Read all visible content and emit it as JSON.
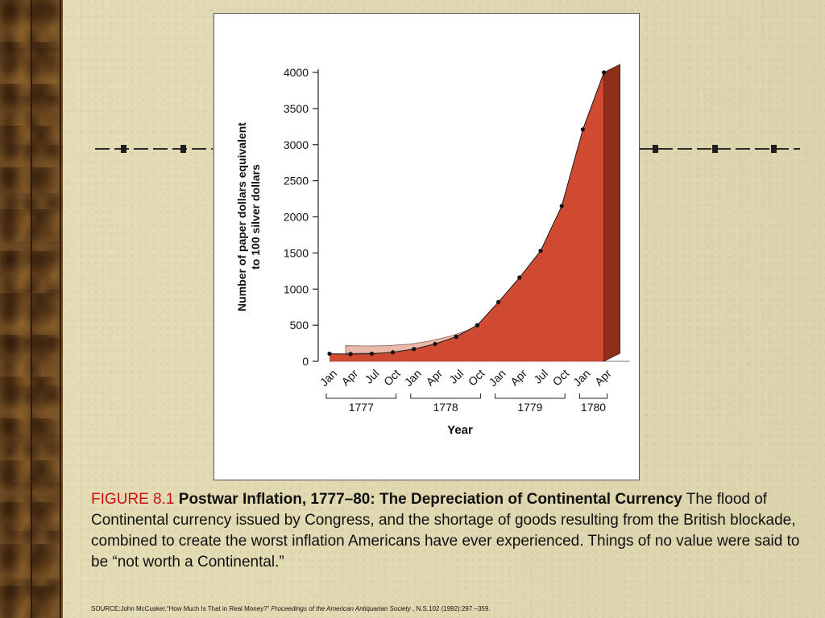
{
  "figure": {
    "label": "FIGURE 8.1",
    "title": "Postwar Inflation, 1777–80: The Depreciation of Continental Currency",
    "description": "The flood of Continental currency issued by Congress, and the shortage of goods resulting from the British blockade, combined to create the worst inflation Americans have ever experienced. Things of no value were said to be “not worth a Continental.”"
  },
  "source": {
    "prefix": "SOURCE:John McCusker,“How Much Is That in Real Money?”",
    "journal": "Proceedings of the American Antiquarian Society",
    "suffix": ", N.S.102 (1992):297 –359."
  },
  "chart_data": {
    "type": "area",
    "xlabel": "Year",
    "ylabel": "Number of paper dollars equivalent to 100 silver dollars",
    "ylim": [
      0,
      4000
    ],
    "yticks": [
      0,
      500,
      1000,
      1500,
      2000,
      2500,
      3000,
      3500,
      4000
    ],
    "x": [
      "Jan 1777",
      "Apr 1777",
      "Jul 1777",
      "Oct 1777",
      "Jan 1778",
      "Apr 1778",
      "Jul 1778",
      "Oct 1778",
      "Jan 1779",
      "Apr 1779",
      "Jul 1779",
      "Oct 1779",
      "Jan 1780",
      "Apr 1780"
    ],
    "month_labels": [
      "Jan",
      "Apr",
      "Jul",
      "Oct",
      "Jan",
      "Apr",
      "Jul",
      "Oct",
      "Jan",
      "Apr",
      "Jul",
      "Oct",
      "Jan",
      "Apr"
    ],
    "year_groups": [
      {
        "label": "1777",
        "start": 0,
        "end": 3
      },
      {
        "label": "1778",
        "start": 4,
        "end": 7
      },
      {
        "label": "1779",
        "start": 8,
        "end": 11
      },
      {
        "label": "1780",
        "start": 12,
        "end": 13
      }
    ],
    "values": [
      105,
      100,
      105,
      125,
      170,
      240,
      340,
      500,
      820,
      1160,
      1530,
      2150,
      3210,
      4000
    ],
    "colors": {
      "fill": "#cf4a30",
      "side": "#8e2f1c",
      "back": "#e9b8aa",
      "floor": "#b8b8b8",
      "line": "#1a1a1a"
    },
    "grid": false
  }
}
